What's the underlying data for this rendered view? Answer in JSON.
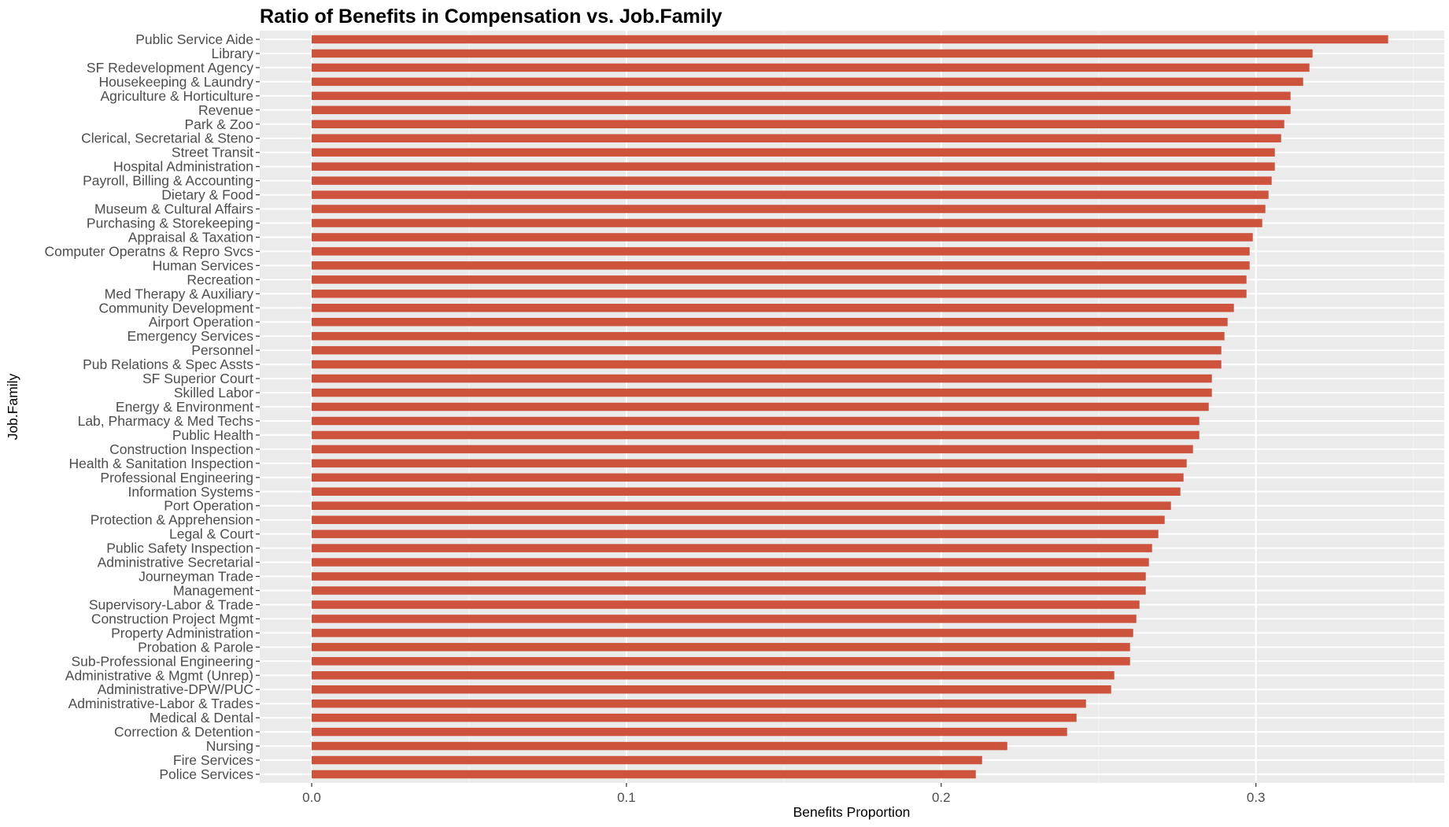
{
  "chart_data": {
    "type": "bar",
    "orientation": "horizontal",
    "title": "Ratio of Benefits in Compensation vs. Job.Family",
    "xlabel": "Benefits Proportion",
    "ylabel": "Job.Family",
    "xlim": [
      -0.017,
      0.357
    ],
    "xticks": [
      "0.0",
      "0.1",
      "0.2",
      "0.3"
    ],
    "xtick_values": [
      0.0,
      0.1,
      0.2,
      0.3
    ],
    "grid": true,
    "colors": {
      "bar": "#cd533d",
      "panel": "#ebebeb",
      "grid": "#ffffff"
    },
    "categories": [
      "Public Service Aide",
      "Library",
      "SF Redevelopment Agency",
      "Housekeeping & Laundry",
      "Agriculture & Horticulture",
      "Revenue",
      "Park & Zoo",
      "Clerical, Secretarial & Steno",
      "Street Transit",
      "Hospital Administration",
      "Payroll, Billing & Accounting",
      "Dietary & Food",
      "Museum & Cultural Affairs",
      "Purchasing & Storekeeping",
      "Appraisal & Taxation",
      "Computer Operatns & Repro Svcs",
      "Human Services",
      "Recreation",
      "Med Therapy & Auxiliary",
      "Community Development",
      "Airport Operation",
      "Emergency Services",
      "Personnel",
      "Pub Relations & Spec Assts",
      "SF Superior Court",
      "Skilled Labor",
      "Energy & Environment",
      "Lab, Pharmacy & Med Techs",
      "Public Health",
      "Construction Inspection",
      "Health & Sanitation Inspection",
      "Professional Engineering",
      "Information Systems",
      "Port Operation",
      "Protection & Apprehension",
      "Legal & Court",
      "Public Safety Inspection",
      "Administrative Secretarial",
      "Journeyman Trade",
      "Management",
      "Supervisory-Labor & Trade",
      "Construction Project Mgmt",
      "Property Administration",
      "Probation & Parole",
      "Sub-Professional Engineering",
      "Administrative & Mgmt (Unrep)",
      "Administrative-DPW/PUC",
      "Administrative-Labor & Trades",
      "Medical & Dental",
      "Correction & Detention",
      "Nursing",
      "Fire Services",
      "Police Services"
    ],
    "values": [
      0.342,
      0.318,
      0.317,
      0.315,
      0.311,
      0.311,
      0.309,
      0.308,
      0.306,
      0.306,
      0.305,
      0.304,
      0.303,
      0.302,
      0.299,
      0.298,
      0.298,
      0.297,
      0.297,
      0.293,
      0.291,
      0.29,
      0.289,
      0.289,
      0.286,
      0.286,
      0.285,
      0.282,
      0.282,
      0.28,
      0.278,
      0.277,
      0.276,
      0.273,
      0.271,
      0.269,
      0.267,
      0.266,
      0.265,
      0.265,
      0.263,
      0.262,
      0.261,
      0.26,
      0.26,
      0.255,
      0.254,
      0.246,
      0.243,
      0.24,
      0.221,
      0.213,
      0.211
    ]
  }
}
